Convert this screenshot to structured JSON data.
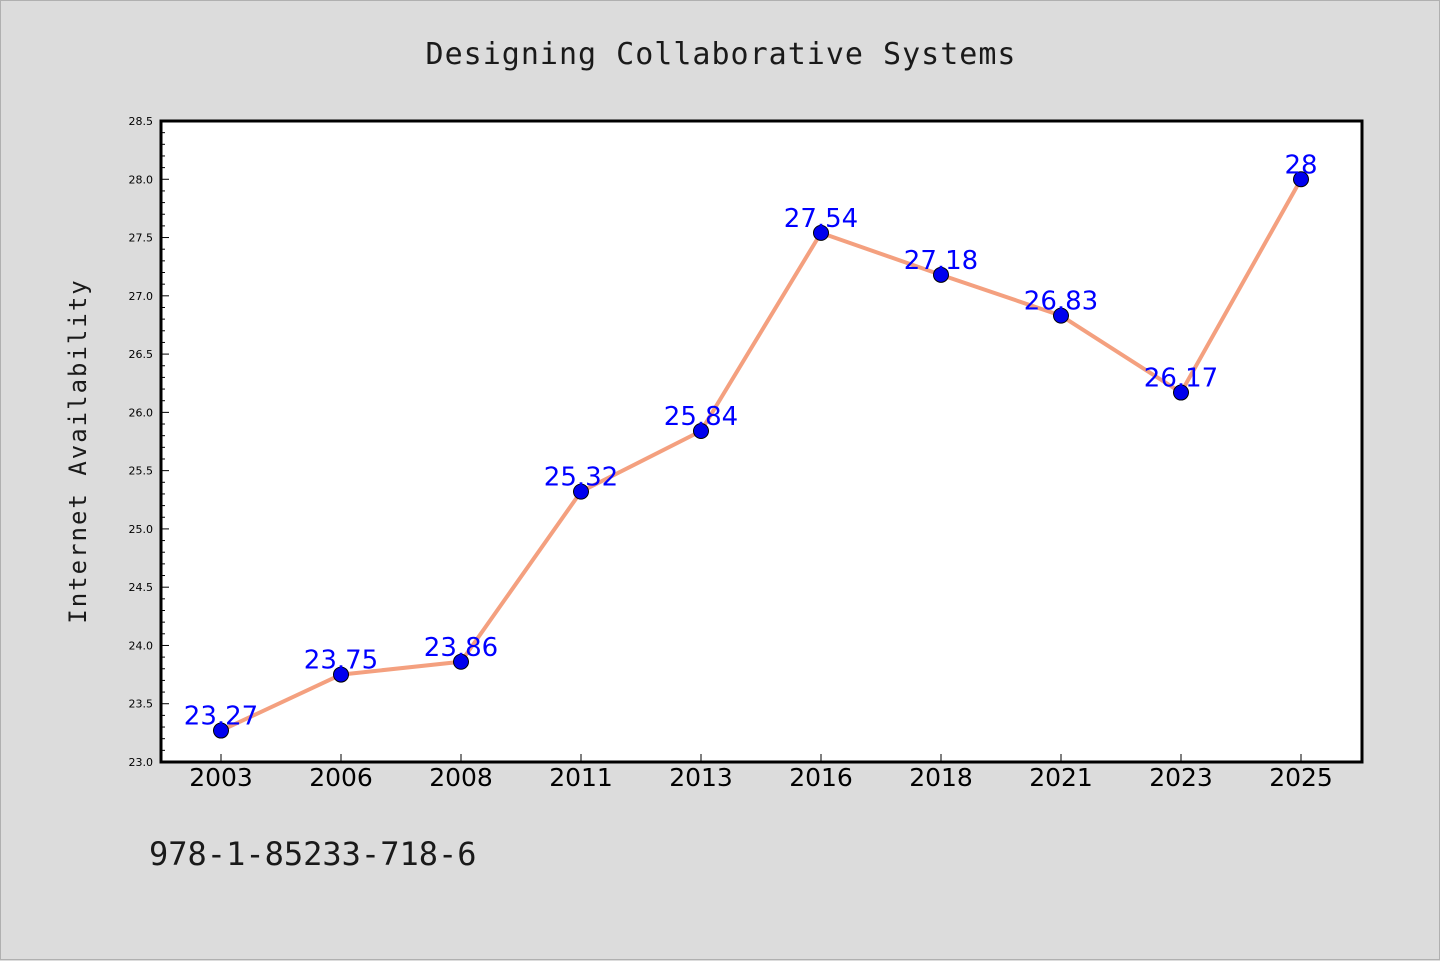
{
  "chart_data": {
    "type": "line",
    "title": "Designing Collaborative Systems",
    "xlabel": "",
    "ylabel": "Internet Availability",
    "x": [
      "2003",
      "2006",
      "2008",
      "2011",
      "2013",
      "2016",
      "2018",
      "2021",
      "2023",
      "2025"
    ],
    "series": [
      {
        "values": [
          23.27,
          23.75,
          23.86,
          25.32,
          25.84,
          27.54,
          27.18,
          26.83,
          26.17,
          28
        ],
        "data_labels": [
          "23.27",
          "23.75",
          "23.86",
          "25.32",
          "25.84",
          "27.54",
          "27.18",
          "26.83",
          "26.17",
          "28"
        ],
        "line_color": "#f4a07f",
        "marker_color": "#0000ee",
        "label_color": "#0000ff"
      }
    ],
    "ylim": [
      23.0,
      28.5
    ],
    "yticks": [
      "23.0",
      "23.5",
      "24.0",
      "24.5",
      "25.0",
      "25.5",
      "26.0",
      "26.5",
      "27.0",
      "27.5",
      "28.0",
      "28.5"
    ],
    "grid": false,
    "legend": "none",
    "footer": "978-1-85233-718-6"
  },
  "colors": {
    "background": "#dcdcdc",
    "plot_background": "#ffffff",
    "axis": "#000000"
  }
}
